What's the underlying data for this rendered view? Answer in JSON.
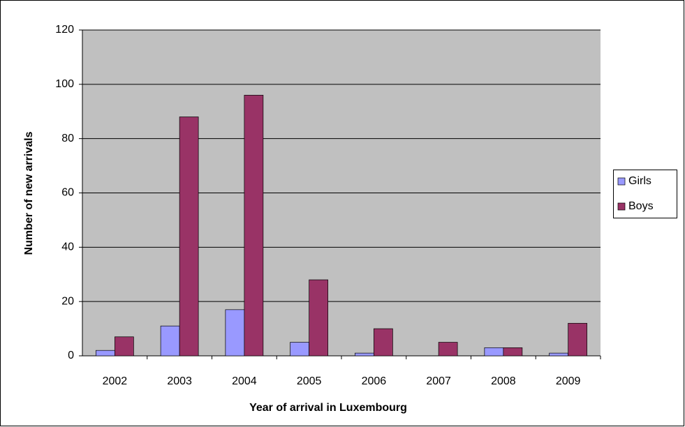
{
  "chart_data": {
    "type": "bar",
    "xlabel": "Year of arrival in Luxembourg",
    "ylabel": "Number of new arrivals",
    "categories": [
      "2002",
      "2003",
      "2004",
      "2005",
      "2006",
      "2007",
      "2008",
      "2009"
    ],
    "series": [
      {
        "name": "Girls",
        "color": "#9999ff",
        "values": [
          2,
          11,
          17,
          5,
          1,
          0,
          3,
          1
        ]
      },
      {
        "name": "Boys",
        "color": "#993366",
        "values": [
          7,
          88,
          96,
          28,
          10,
          5,
          3,
          12
        ]
      }
    ],
    "ylim": [
      0,
      120
    ],
    "yticks": [
      0,
      20,
      40,
      60,
      80,
      100,
      120
    ],
    "grid": true,
    "legend": "right"
  }
}
